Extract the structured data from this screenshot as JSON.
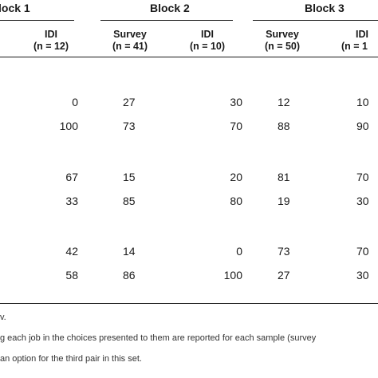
{
  "table": {
    "blocks": [
      {
        "label": "lock 1"
      },
      {
        "label": "Block 2"
      },
      {
        "label": "Block 3"
      }
    ],
    "subheaders": {
      "b1_idi": {
        "line1": "IDI",
        "line2": "(n = 12)"
      },
      "b2_survey": {
        "line1": "Survey",
        "line2": "(n = 41)"
      },
      "b2_idi": {
        "line1": "IDI",
        "line2": "(n = 10)"
      },
      "b3_survey": {
        "line1": "Survey",
        "line2": "(n = 50)"
      },
      "b3_idi": {
        "line1": "IDI",
        "line2": "(n = 1"
      }
    },
    "rows": [
      [
        "0",
        "27",
        "30",
        "12",
        "10"
      ],
      [
        "100",
        "73",
        "70",
        "88",
        "90"
      ],
      [
        "67",
        "15",
        "20",
        "81",
        "70"
      ],
      [
        "33",
        "85",
        "80",
        "19",
        "30"
      ],
      [
        "42",
        "14",
        "0",
        "73",
        "70"
      ],
      [
        "58",
        "86",
        "100",
        "27",
        "30"
      ]
    ]
  },
  "footnotes": {
    "line1": "v.",
    "line2": "g each job in the choices presented to them are reported for each sample (survey",
    "line3": "an option for the third pair in this set."
  }
}
